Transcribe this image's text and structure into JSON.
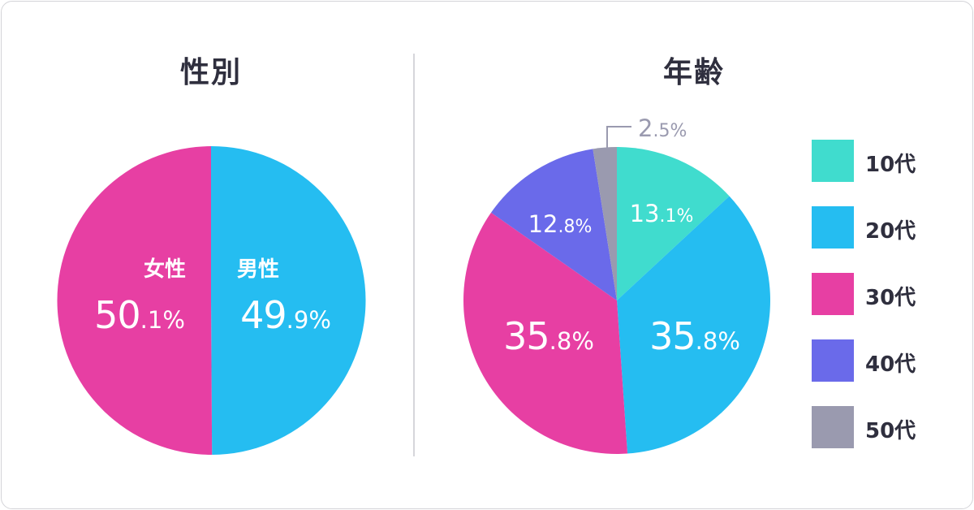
{
  "chart_data": [
    {
      "type": "pie",
      "title": "性別",
      "slices": [
        {
          "label": "男性",
          "value": 49.9,
          "color": "#25bdf1"
        },
        {
          "label": "女性",
          "value": 50.1,
          "color": "#e73fa3"
        }
      ]
    },
    {
      "type": "pie",
      "title": "年齢",
      "legend_position": "right",
      "slices": [
        {
          "label": "10代",
          "value": 13.1,
          "color": "#40dcce"
        },
        {
          "label": "20代",
          "value": 35.8,
          "color": "#25bdf1"
        },
        {
          "label": "30代",
          "value": 35.8,
          "color": "#e73fa3"
        },
        {
          "label": "40代",
          "value": 12.8,
          "color": "#6a6aea"
        },
        {
          "label": "50代",
          "value": 2.5,
          "color": "#9a9aaf"
        }
      ]
    }
  ],
  "gender": {
    "male": {
      "label": "男性",
      "int": "49",
      "dec": ".9%"
    },
    "female": {
      "label": "女性",
      "int": "50",
      "dec": ".1%"
    }
  },
  "age": {
    "teens": {
      "int": "13",
      "dec": ".1%"
    },
    "twenties": {
      "int": "35",
      "dec": ".8%"
    },
    "thirties": {
      "int": "35",
      "dec": ".8%"
    },
    "forties": {
      "int": "12",
      "dec": ".8%"
    },
    "fifties": {
      "int": "2",
      "dec": ".5%"
    }
  },
  "legend": [
    {
      "label": "10代",
      "color": "#40dcce"
    },
    {
      "label": "20代",
      "color": "#25bdf1"
    },
    {
      "label": "30代",
      "color": "#e73fa3"
    },
    {
      "label": "40代",
      "color": "#6a6aea"
    },
    {
      "label": "50代",
      "color": "#9a9aaf"
    }
  ]
}
